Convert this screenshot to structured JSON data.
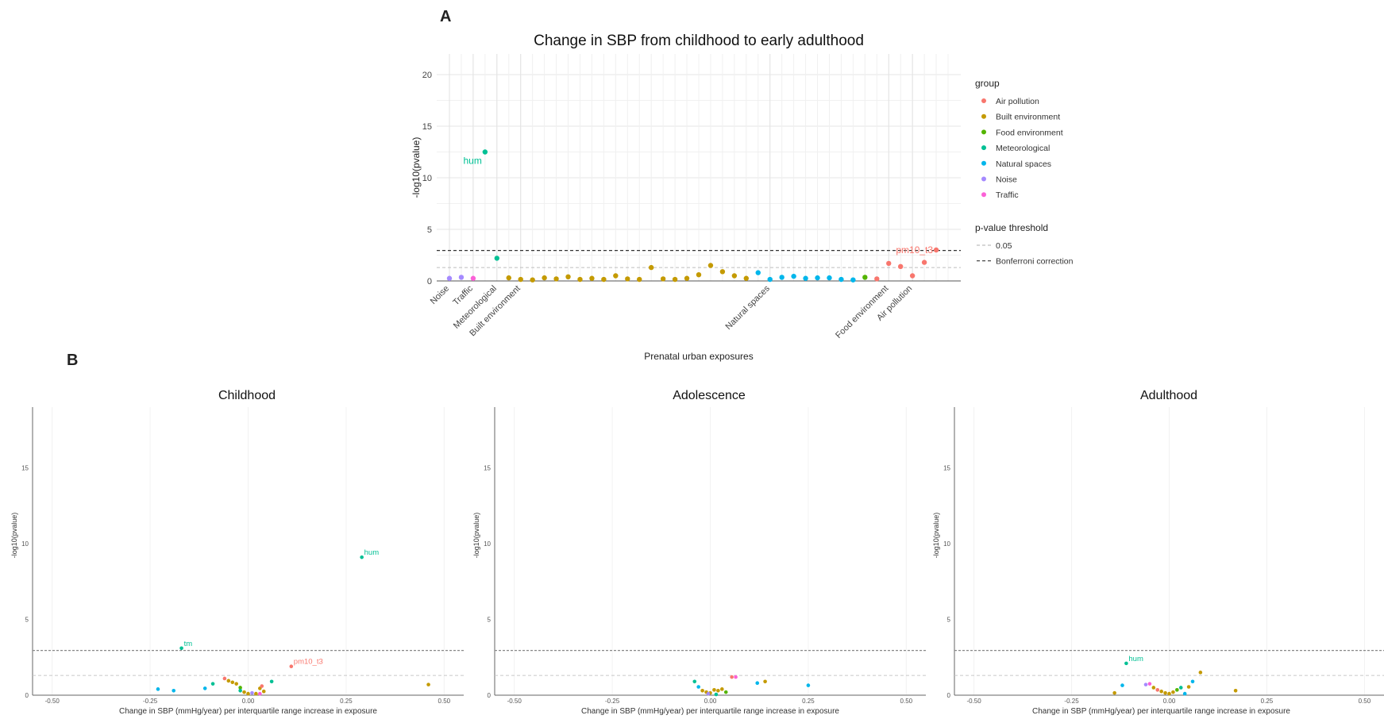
{
  "labels": {
    "panel_a": "A",
    "panel_b": "B"
  },
  "colors": {
    "Air pollution": "#F8766D",
    "Built environment": "#C49A00",
    "Food environment": "#53B400",
    "Meteorological": "#00C094",
    "Natural spaces": "#00B6EB",
    "Noise": "#A58AFF",
    "Traffic": "#FB61D7"
  },
  "chart_data": [
    {
      "id": "A",
      "type": "scatter",
      "title": "Change in SBP from childhood to early adulthood",
      "xlabel": "Prenatal urban exposures",
      "ylabel": "-log10(pvalue)",
      "ylim": [
        0,
        22
      ],
      "yticks": [
        0,
        5,
        10,
        15,
        20
      ],
      "grid": true,
      "n_positions": 43,
      "xticks": [
        {
          "pos": 1,
          "label": "Noise"
        },
        {
          "pos": 3,
          "label": "Traffic"
        },
        {
          "pos": 5,
          "label": "Meteorological"
        },
        {
          "pos": 7,
          "label": "Built environment"
        },
        {
          "pos": 28,
          "label": "Natural spaces"
        },
        {
          "pos": 38,
          "label": "Food environment"
        },
        {
          "pos": 40,
          "label": "Air pollution"
        }
      ],
      "thresholds": [
        {
          "name": "0.05",
          "value": 1.3,
          "style": "light"
        },
        {
          "name": "Bonferroni correction",
          "value": 2.95,
          "style": "dark"
        }
      ],
      "legend": {
        "title": "group",
        "entries": [
          "Air pollution",
          "Built environment",
          "Food environment",
          "Meteorological",
          "Natural spaces",
          "Noise",
          "Traffic"
        ],
        "threshold_title": "p-value threshold",
        "threshold_entries": [
          "0.05",
          "Bonferroni correction"
        ],
        "position": "right"
      },
      "points": [
        {
          "x": 1,
          "y": 0.25,
          "group": "Noise"
        },
        {
          "x": 2,
          "y": 0.35,
          "group": "Noise"
        },
        {
          "x": 3,
          "y": 0.25,
          "group": "Traffic"
        },
        {
          "x": 4,
          "y": 12.5,
          "group": "Meteorological",
          "label": "hum"
        },
        {
          "x": 5,
          "y": 2.2,
          "group": "Meteorological"
        },
        {
          "x": 6,
          "y": 0.3,
          "group": "Built environment"
        },
        {
          "x": 7,
          "y": 0.15,
          "group": "Built environment"
        },
        {
          "x": 8,
          "y": 0.1,
          "group": "Built environment"
        },
        {
          "x": 9,
          "y": 0.3,
          "group": "Built environment"
        },
        {
          "x": 10,
          "y": 0.2,
          "group": "Built environment"
        },
        {
          "x": 11,
          "y": 0.4,
          "group": "Built environment"
        },
        {
          "x": 12,
          "y": 0.15,
          "group": "Built environment"
        },
        {
          "x": 13,
          "y": 0.25,
          "group": "Built environment"
        },
        {
          "x": 14,
          "y": 0.15,
          "group": "Built environment"
        },
        {
          "x": 15,
          "y": 0.5,
          "group": "Built environment"
        },
        {
          "x": 16,
          "y": 0.2,
          "group": "Built environment"
        },
        {
          "x": 17,
          "y": 0.15,
          "group": "Built environment"
        },
        {
          "x": 18,
          "y": 1.3,
          "group": "Built environment"
        },
        {
          "x": 19,
          "y": 0.2,
          "group": "Built environment"
        },
        {
          "x": 20,
          "y": 0.15,
          "group": "Built environment"
        },
        {
          "x": 21,
          "y": 0.25,
          "group": "Built environment"
        },
        {
          "x": 22,
          "y": 0.6,
          "group": "Built environment"
        },
        {
          "x": 23,
          "y": 1.5,
          "group": "Built environment"
        },
        {
          "x": 24,
          "y": 0.9,
          "group": "Built environment"
        },
        {
          "x": 25,
          "y": 0.5,
          "group": "Built environment"
        },
        {
          "x": 26,
          "y": 0.25,
          "group": "Built environment"
        },
        {
          "x": 27,
          "y": 0.8,
          "group": "Natural spaces"
        },
        {
          "x": 28,
          "y": 0.15,
          "group": "Natural spaces"
        },
        {
          "x": 29,
          "y": 0.35,
          "group": "Natural spaces"
        },
        {
          "x": 30,
          "y": 0.45,
          "group": "Natural spaces"
        },
        {
          "x": 31,
          "y": 0.25,
          "group": "Natural spaces"
        },
        {
          "x": 32,
          "y": 0.3,
          "group": "Natural spaces"
        },
        {
          "x": 33,
          "y": 0.3,
          "group": "Natural spaces"
        },
        {
          "x": 34,
          "y": 0.15,
          "group": "Natural spaces"
        },
        {
          "x": 35,
          "y": 0.1,
          "group": "Natural spaces"
        },
        {
          "x": 36,
          "y": 0.35,
          "group": "Food environment"
        },
        {
          "x": 37,
          "y": 0.2,
          "group": "Air pollution"
        },
        {
          "x": 38,
          "y": 1.7,
          "group": "Air pollution"
        },
        {
          "x": 39,
          "y": 1.4,
          "group": "Air pollution"
        },
        {
          "x": 40,
          "y": 0.5,
          "group": "Air pollution"
        },
        {
          "x": 41,
          "y": 1.8,
          "group": "Air pollution"
        },
        {
          "x": 42,
          "y": 3.0,
          "group": "Air pollution",
          "label": "pm10_t3"
        }
      ]
    },
    {
      "id": "B1",
      "type": "scatter",
      "title": "Childhood",
      "xlabel": "Change in SBP (mmHg/year) per interquartile range increase in exposure",
      "ylabel": "-log10(pvalue)",
      "xlim": [
        -0.55,
        0.55
      ],
      "ylim": [
        0,
        19
      ],
      "xticks": [
        -0.5,
        -0.25,
        0,
        0.25,
        0.5
      ],
      "xtick_labels": [
        "-0.50",
        "-0.25",
        "0.00",
        "0.25",
        "0.50"
      ],
      "yticks": [
        0,
        5,
        10,
        15
      ],
      "thresholds": [
        1.3,
        2.95
      ],
      "points": [
        {
          "x": 0.29,
          "y": 9.1,
          "group": "Meteorological",
          "label": "hum"
        },
        {
          "x": -0.17,
          "y": 3.1,
          "group": "Meteorological",
          "label": "tm"
        },
        {
          "x": 0.11,
          "y": 1.9,
          "group": "Air pollution",
          "label": "pm10_t3"
        },
        {
          "x": 0.46,
          "y": 0.7,
          "group": "Built environment"
        },
        {
          "x": -0.23,
          "y": 0.4,
          "group": "Natural spaces"
        },
        {
          "x": -0.19,
          "y": 0.3,
          "group": "Natural spaces"
        },
        {
          "x": -0.11,
          "y": 0.45,
          "group": "Natural spaces"
        },
        {
          "x": -0.09,
          "y": 0.75,
          "group": "Meteorological"
        },
        {
          "x": -0.06,
          "y": 1.1,
          "group": "Air pollution"
        },
        {
          "x": -0.05,
          "y": 0.95,
          "group": "Built environment"
        },
        {
          "x": -0.04,
          "y": 0.85,
          "group": "Built environment"
        },
        {
          "x": -0.03,
          "y": 0.75,
          "group": "Built environment"
        },
        {
          "x": -0.02,
          "y": 0.5,
          "group": "Food environment"
        },
        {
          "x": -0.02,
          "y": 0.3,
          "group": "Meteorological"
        },
        {
          "x": -0.01,
          "y": 0.2,
          "group": "Built environment"
        },
        {
          "x": 0.0,
          "y": 0.1,
          "group": "Built environment"
        },
        {
          "x": 0.01,
          "y": 0.15,
          "group": "Noise"
        },
        {
          "x": 0.02,
          "y": 0.1,
          "group": "Built environment"
        },
        {
          "x": 0.03,
          "y": 0.45,
          "group": "Built environment"
        },
        {
          "x": 0.035,
          "y": 0.6,
          "group": "Air pollution"
        },
        {
          "x": 0.04,
          "y": 0.25,
          "group": "Built environment"
        },
        {
          "x": 0.06,
          "y": 0.9,
          "group": "Meteorological"
        },
        {
          "x": 0.03,
          "y": 0.1,
          "group": "Traffic"
        }
      ]
    },
    {
      "id": "B2",
      "type": "scatter",
      "title": "Adolescence",
      "xlabel": "Change in SBP (mmHg/year) per interquartile range increase in exposure",
      "ylabel": "-log10(pvalue)",
      "xlim": [
        -0.55,
        0.55
      ],
      "ylim": [
        0,
        19
      ],
      "xticks": [
        -0.5,
        -0.25,
        0,
        0.25,
        0.5
      ],
      "xtick_labels": [
        "-0.50",
        "-0.25",
        "0.00",
        "0.25",
        "0.50"
      ],
      "yticks": [
        0,
        5,
        10,
        15
      ],
      "thresholds": [
        1.3,
        2.95
      ],
      "points": [
        {
          "x": -0.04,
          "y": 0.9,
          "group": "Meteorological"
        },
        {
          "x": -0.03,
          "y": 0.55,
          "group": "Natural spaces"
        },
        {
          "x": -0.02,
          "y": 0.3,
          "group": "Built environment"
        },
        {
          "x": -0.01,
          "y": 0.2,
          "group": "Built environment"
        },
        {
          "x": 0.0,
          "y": 0.15,
          "group": "Built environment"
        },
        {
          "x": 0.01,
          "y": 0.35,
          "group": "Built environment"
        },
        {
          "x": 0.02,
          "y": 0.3,
          "group": "Built environment"
        },
        {
          "x": 0.03,
          "y": 0.4,
          "group": "Built environment"
        },
        {
          "x": 0.04,
          "y": 0.2,
          "group": "Food environment"
        },
        {
          "x": 0.055,
          "y": 1.2,
          "group": "Air pollution"
        },
        {
          "x": 0.065,
          "y": 1.2,
          "group": "Traffic"
        },
        {
          "x": 0.12,
          "y": 0.8,
          "group": "Natural spaces"
        },
        {
          "x": 0.14,
          "y": 0.9,
          "group": "Built environment"
        },
        {
          "x": 0.25,
          "y": 0.65,
          "group": "Natural spaces"
        },
        {
          "x": -0.005,
          "y": 0.1,
          "group": "Noise"
        },
        {
          "x": 0.015,
          "y": 0.05,
          "group": "Meteorological"
        }
      ]
    },
    {
      "id": "B3",
      "type": "scatter",
      "title": "Adulthood",
      "xlabel": "Change in SBP (mmHg/year) per interquartile range increase in exposure",
      "ylabel": "-log10(pvalue)",
      "xlim": [
        -0.55,
        0.55
      ],
      "ylim": [
        0,
        19
      ],
      "xticks": [
        -0.5,
        -0.25,
        0,
        0.25,
        0.5
      ],
      "xtick_labels": [
        "-0.50",
        "-0.25",
        "0.00",
        "0.25",
        "0.50"
      ],
      "yticks": [
        0,
        5,
        10,
        15
      ],
      "thresholds": [
        1.3,
        2.95
      ],
      "points": [
        {
          "x": -0.11,
          "y": 2.1,
          "group": "Meteorological",
          "label": "hum"
        },
        {
          "x": -0.12,
          "y": 0.65,
          "group": "Natural spaces"
        },
        {
          "x": -0.06,
          "y": 0.7,
          "group": "Noise"
        },
        {
          "x": -0.05,
          "y": 0.75,
          "group": "Traffic"
        },
        {
          "x": -0.04,
          "y": 0.5,
          "group": "Built environment"
        },
        {
          "x": -0.03,
          "y": 0.35,
          "group": "Air pollution"
        },
        {
          "x": -0.02,
          "y": 0.25,
          "group": "Built environment"
        },
        {
          "x": -0.01,
          "y": 0.15,
          "group": "Built environment"
        },
        {
          "x": 0.0,
          "y": 0.1,
          "group": "Built environment"
        },
        {
          "x": 0.01,
          "y": 0.2,
          "group": "Built environment"
        },
        {
          "x": 0.02,
          "y": 0.35,
          "group": "Food environment"
        },
        {
          "x": 0.03,
          "y": 0.5,
          "group": "Meteorological"
        },
        {
          "x": 0.05,
          "y": 0.55,
          "group": "Built environment"
        },
        {
          "x": 0.06,
          "y": 0.9,
          "group": "Natural spaces"
        },
        {
          "x": 0.08,
          "y": 1.5,
          "group": "Built environment"
        },
        {
          "x": 0.17,
          "y": 0.3,
          "group": "Built environment"
        },
        {
          "x": -0.14,
          "y": 0.15,
          "group": "Built environment"
        },
        {
          "x": 0.04,
          "y": 0.1,
          "group": "Natural spaces"
        }
      ]
    }
  ]
}
